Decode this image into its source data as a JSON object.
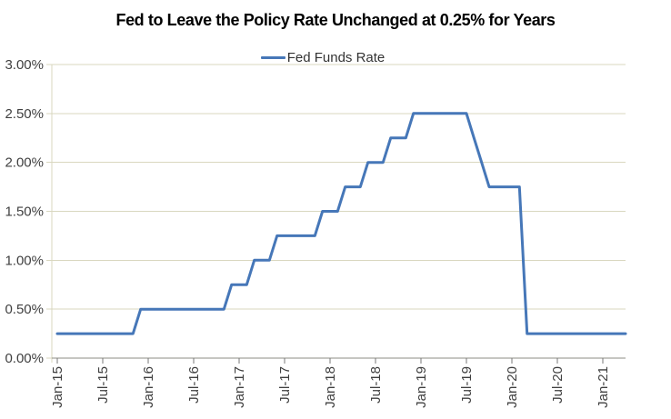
{
  "legend": {
    "label": "Fed Funds Rate"
  },
  "colors": {
    "line": "#4677b8",
    "grid": "#d9d7bf",
    "x_axis": "#8e8e84",
    "label_text": "#3f3f3f",
    "title_text": "#000000",
    "background": "#ffffff"
  },
  "chart_data": {
    "type": "line",
    "title": "Fed to Leave the Policy Rate Unchanged at 0.25% for Years",
    "xlabel": "",
    "ylabel": "",
    "x_unit": "month",
    "ylim": [
      0,
      3
    ],
    "grid": "horizontal",
    "legend_position": "top-center",
    "y_tick_values": [
      0,
      0.5,
      1,
      1.5,
      2,
      2.5,
      3
    ],
    "y_tick_labels": [
      "0.00%",
      "0.50%",
      "1.00%",
      "1.50%",
      "2.00%",
      "2.50%",
      "3.00%"
    ],
    "x_tick_every": 6,
    "x_tick_labels": [
      "Jan-15",
      "Jul-15",
      "Jan-16",
      "Jul-16",
      "Jan-17",
      "Jul-17",
      "Jan-18",
      "Jul-18",
      "Jan-19",
      "Jul-19",
      "Jan-20",
      "Jul-20",
      "Jan-21"
    ],
    "x_months": [
      "Jan-15",
      "Feb-15",
      "Mar-15",
      "Apr-15",
      "May-15",
      "Jun-15",
      "Jul-15",
      "Aug-15",
      "Sep-15",
      "Oct-15",
      "Nov-15",
      "Dec-15",
      "Jan-16",
      "Feb-16",
      "Mar-16",
      "Apr-16",
      "May-16",
      "Jun-16",
      "Jul-16",
      "Aug-16",
      "Sep-16",
      "Oct-16",
      "Nov-16",
      "Dec-16",
      "Jan-17",
      "Feb-17",
      "Mar-17",
      "Apr-17",
      "May-17",
      "Jun-17",
      "Jul-17",
      "Aug-17",
      "Sep-17",
      "Oct-17",
      "Nov-17",
      "Dec-17",
      "Jan-18",
      "Feb-18",
      "Mar-18",
      "Apr-18",
      "May-18",
      "Jun-18",
      "Jul-18",
      "Aug-18",
      "Sep-18",
      "Oct-18",
      "Nov-18",
      "Dec-18",
      "Jan-19",
      "Feb-19",
      "Mar-19",
      "Apr-19",
      "May-19",
      "Jun-19",
      "Jul-19",
      "Aug-19",
      "Sep-19",
      "Oct-19",
      "Nov-19",
      "Dec-19",
      "Jan-20",
      "Feb-20",
      "Mar-20",
      "Apr-20",
      "May-20",
      "Jun-20",
      "Jul-20",
      "Aug-20",
      "Sep-20",
      "Oct-20",
      "Nov-20",
      "Dec-20",
      "Jan-21",
      "Feb-21",
      "Mar-21",
      "Apr-21"
    ],
    "series": [
      {
        "name": "Fed Funds Rate",
        "color": "#4677b8",
        "values": [
          0.25,
          0.25,
          0.25,
          0.25,
          0.25,
          0.25,
          0.25,
          0.25,
          0.25,
          0.25,
          0.25,
          0.5,
          0.5,
          0.5,
          0.5,
          0.5,
          0.5,
          0.5,
          0.5,
          0.5,
          0.5,
          0.5,
          0.5,
          0.75,
          0.75,
          0.75,
          1.0,
          1.0,
          1.0,
          1.25,
          1.25,
          1.25,
          1.25,
          1.25,
          1.25,
          1.5,
          1.5,
          1.5,
          1.75,
          1.75,
          1.75,
          2.0,
          2.0,
          2.0,
          2.25,
          2.25,
          2.25,
          2.5,
          2.5,
          2.5,
          2.5,
          2.5,
          2.5,
          2.5,
          2.5,
          2.25,
          2.0,
          1.75,
          1.75,
          1.75,
          1.75,
          1.75,
          0.25,
          0.25,
          0.25,
          0.25,
          0.25,
          0.25,
          0.25,
          0.25,
          0.25,
          0.25,
          0.25,
          0.25,
          0.25,
          0.25
        ]
      }
    ]
  }
}
